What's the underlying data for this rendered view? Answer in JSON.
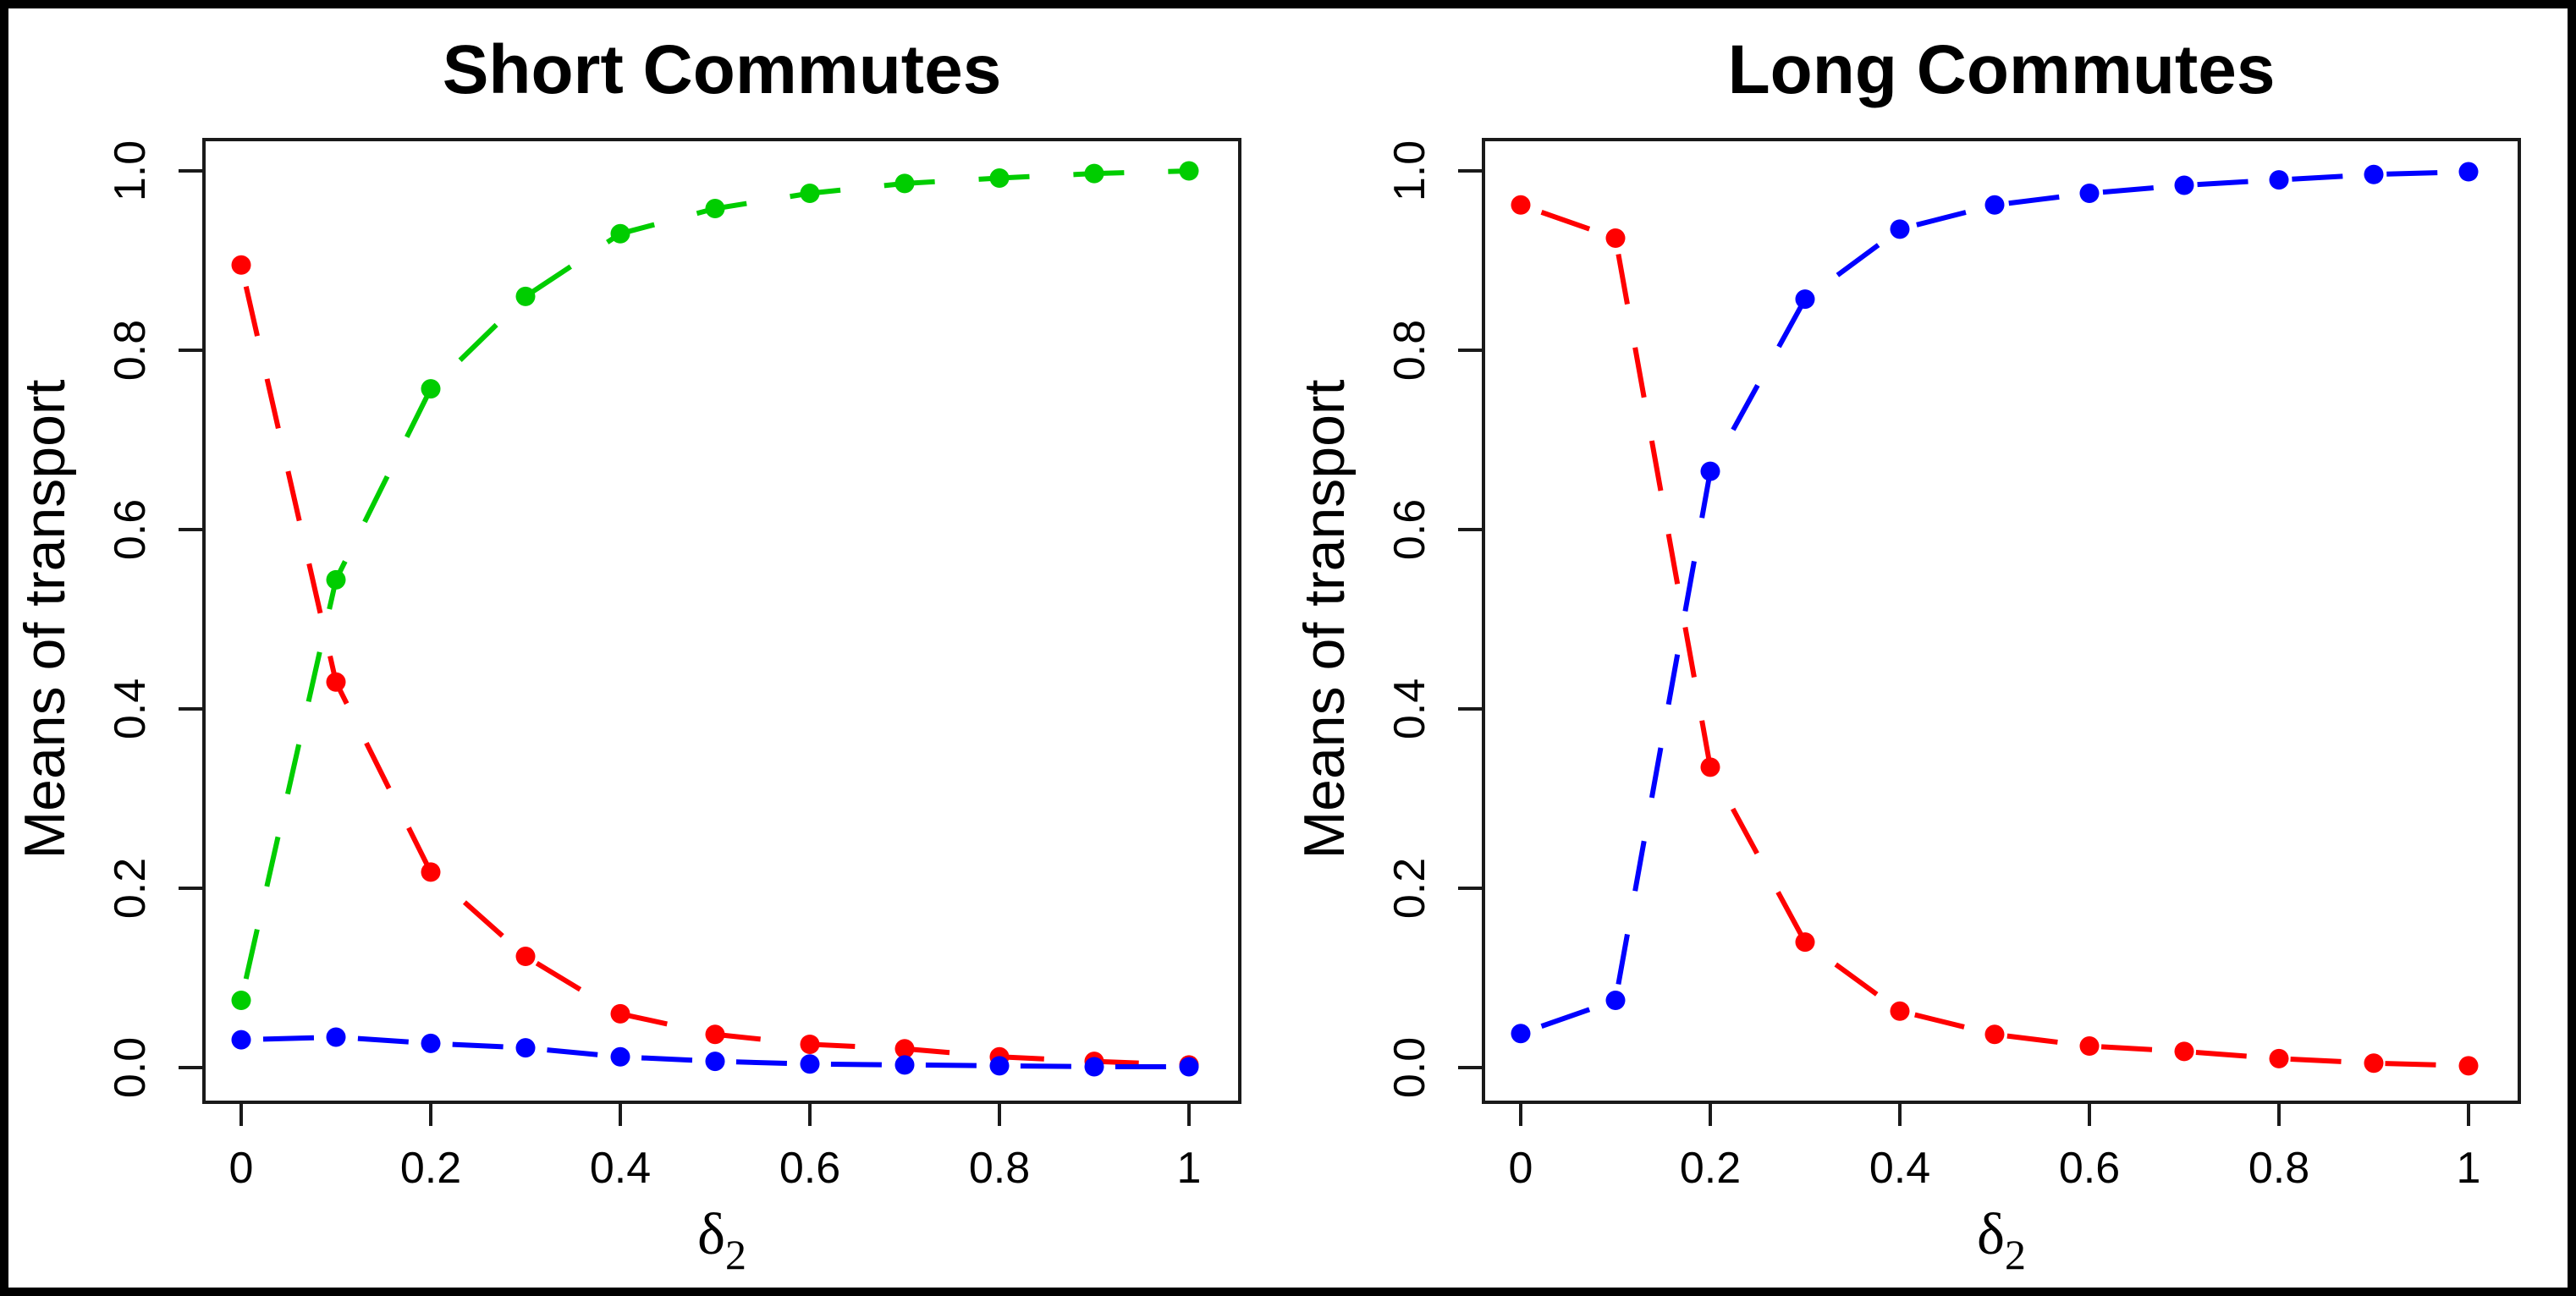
{
  "chart_data": [
    {
      "type": "line",
      "title": "Short Commutes",
      "xlabel": "δ",
      "xlabel_subscript": "2",
      "ylabel": "Means of transport",
      "xlim": [
        0,
        1
      ],
      "ylim": [
        0,
        1
      ],
      "grid": false,
      "legend": "none",
      "xtick_values": [
        0,
        0.2,
        0.4,
        0.6,
        0.8,
        1
      ],
      "xtick_labels": [
        "0",
        "0.2",
        "0.4",
        "0.6",
        "0.8",
        "1"
      ],
      "ytick_values": [
        0,
        0.2,
        0.4,
        0.6,
        0.8,
        1
      ],
      "ytick_labels": [
        "0.0",
        "0.2",
        "0.4",
        "0.6",
        "0.8",
        "1.0"
      ],
      "x": [
        0,
        0.1,
        0.2,
        0.3,
        0.4,
        0.5,
        0.6,
        0.7,
        0.8,
        0.9,
        1.0
      ],
      "series": [
        {
          "name": "red",
          "color": "#FF0000",
          "line_style": "dashed",
          "marker": "filled-circle",
          "values": [
            0.895,
            0.43,
            0.218,
            0.124,
            0.06,
            0.037,
            0.026,
            0.021,
            0.012,
            0.007,
            0.003
          ]
        },
        {
          "name": "green",
          "color": "#00CD00",
          "line_style": "dashed",
          "marker": "filled-circle",
          "values": [
            0.075,
            0.544,
            0.757,
            0.86,
            0.93,
            0.958,
            0.975,
            0.986,
            0.992,
            0.997,
            1.0
          ]
        },
        {
          "name": "blue",
          "color": "#0000FF",
          "line_style": "dashed",
          "marker": "filled-circle",
          "values": [
            0.031,
            0.034,
            0.027,
            0.022,
            0.012,
            0.007,
            0.004,
            0.003,
            0.002,
            0.001,
            0.001
          ]
        }
      ]
    },
    {
      "type": "line",
      "title": "Long Commutes",
      "xlabel": "δ",
      "xlabel_subscript": "2",
      "ylabel": "Means of transport",
      "xlim": [
        0,
        1
      ],
      "ylim": [
        0,
        1
      ],
      "grid": false,
      "legend": "none",
      "xtick_values": [
        0,
        0.2,
        0.4,
        0.6,
        0.8,
        1
      ],
      "xtick_labels": [
        "0",
        "0.2",
        "0.4",
        "0.6",
        "0.8",
        "1"
      ],
      "ytick_values": [
        0,
        0.2,
        0.4,
        0.6,
        0.8,
        1
      ],
      "ytick_labels": [
        "0.0",
        "0.2",
        "0.4",
        "0.6",
        "0.8",
        "1.0"
      ],
      "x": [
        0,
        0.1,
        0.2,
        0.3,
        0.4,
        0.5,
        0.6,
        0.7,
        0.8,
        0.9,
        1.0
      ],
      "series": [
        {
          "name": "red",
          "color": "#FF0000",
          "line_style": "dashed",
          "marker": "filled-circle",
          "values": [
            0.962,
            0.925,
            0.335,
            0.14,
            0.063,
            0.037,
            0.024,
            0.018,
            0.01,
            0.005,
            0.002
          ]
        },
        {
          "name": "blue",
          "color": "#0000FF",
          "line_style": "dashed",
          "marker": "filled-circle",
          "values": [
            0.038,
            0.075,
            0.665,
            0.857,
            0.935,
            0.962,
            0.975,
            0.984,
            0.99,
            0.996,
            0.999
          ]
        }
      ]
    }
  ],
  "style_colors": {
    "axis": "#1a1a1a",
    "text": "#000000",
    "figure_border": "#000000"
  }
}
